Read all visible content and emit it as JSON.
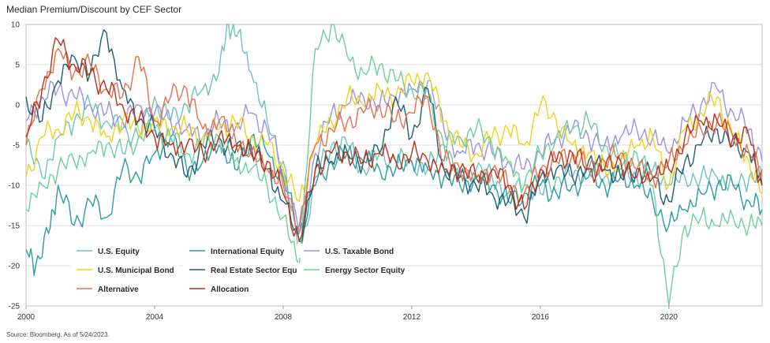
{
  "title": "Median Premium/Discount by CEF Sector",
  "source": "Source: Bloomberg. As of 5/24/2023.",
  "chart_data": {
    "type": "line",
    "xlim": [
      2000,
      2022.9
    ],
    "ylim": [
      -25,
      10
    ],
    "xticks": [
      2000,
      2004,
      2008,
      2012,
      2016,
      2020
    ],
    "xtick_labels": [
      "2000",
      "2004",
      "2008",
      "2012",
      "2016",
      "2020"
    ],
    "yticks": [
      10,
      5,
      0,
      -5,
      -10,
      -15,
      -20,
      -25
    ],
    "ytick_labels": [
      "10",
      "5",
      "0",
      "-5",
      "-10",
      "-15",
      "-20",
      "-25"
    ],
    "grid": "horizontal",
    "legend_position": "bottom-left",
    "series": [
      {
        "name": "U.S. Equity",
        "color": "#6ec3bd",
        "x": [
          2000,
          2000.5,
          2001,
          2001.5,
          2002,
          2002.5,
          2003,
          2003.5,
          2004,
          2004.5,
          2005,
          2005.5,
          2006,
          2006.3,
          2006.6,
          2007,
          2007.5,
          2008,
          2008.5,
          2009,
          2009.5,
          2010,
          2010.5,
          2011,
          2011.5,
          2012,
          2012.5,
          2013,
          2013.5,
          2014,
          2014.5,
          2015,
          2015.5,
          2016,
          2016.5,
          2017,
          2017.5,
          2018,
          2018.5,
          2019,
          2019.5,
          2020,
          2020.5,
          2021,
          2021.5,
          2022,
          2022.5,
          2022.9
        ],
        "y": [
          -5,
          -9,
          -4,
          -2,
          0,
          -2,
          -3,
          -4,
          1,
          -2,
          0,
          2,
          4,
          10,
          9,
          4,
          -2,
          -7,
          -19,
          -9,
          -5,
          -5,
          -8,
          -6,
          -7,
          -7,
          -8,
          -5,
          -9,
          -8,
          -9,
          -11,
          -10,
          -11,
          -9,
          -9,
          -8,
          -9,
          -8,
          -9,
          -8,
          -10,
          -9,
          -9,
          -9,
          -10,
          -9,
          -9
        ]
      },
      {
        "name": "International Equity",
        "color": "#2a9da0",
        "x": [
          2000,
          2000.3,
          2000.7,
          2001,
          2001.5,
          2002,
          2002.5,
          2003,
          2003.5,
          2004,
          2004.5,
          2005,
          2005.5,
          2006,
          2006.5,
          2007,
          2007.5,
          2008,
          2008.5,
          2009,
          2009.5,
          2010,
          2010.5,
          2011,
          2011.5,
          2012,
          2012.5,
          2013,
          2013.5,
          2014,
          2014.5,
          2015,
          2015.5,
          2016,
          2016.5,
          2017,
          2017.5,
          2018,
          2018.5,
          2019,
          2019.5,
          2020,
          2020.5,
          2021,
          2021.5,
          2022,
          2022.5,
          2022.9
        ],
        "y": [
          -18,
          -20,
          -16,
          -10,
          -15,
          -12,
          -14,
          -8,
          -9,
          -6,
          -4,
          -8,
          -7,
          -5,
          -8,
          -4,
          -6,
          -9,
          -16,
          -10,
          -7,
          -6,
          -7,
          -8,
          -8,
          -7,
          -8,
          -9,
          -10,
          -9,
          -10,
          -12,
          -11,
          -10,
          -11,
          -10,
          -9,
          -10,
          -9,
          -10,
          -12,
          -15,
          -13,
          -11,
          -10,
          -10,
          -12,
          -13
        ]
      },
      {
        "name": "U.S. Taxable Bond",
        "color": "#9a93e0",
        "x": [
          2000,
          2000.5,
          2001,
          2001.5,
          2002,
          2002.5,
          2003,
          2003.5,
          2004,
          2004.5,
          2005,
          2005.5,
          2006,
          2006.5,
          2007,
          2007.5,
          2008,
          2008.5,
          2009,
          2009.5,
          2010,
          2010.5,
          2011,
          2011.5,
          2012,
          2012.5,
          2013,
          2013.5,
          2014,
          2014.5,
          2015,
          2015.5,
          2016,
          2016.5,
          2017,
          2017.5,
          2018,
          2018.5,
          2019,
          2019.5,
          2020,
          2020.5,
          2021,
          2021.5,
          2022,
          2022.5,
          2022.9
        ],
        "y": [
          -2,
          1,
          2,
          1,
          0,
          -1,
          -2,
          0,
          -1,
          -2,
          -3,
          -4,
          -2,
          -3,
          -1,
          -3,
          -8,
          -16,
          -6,
          -1,
          0,
          1,
          0,
          1,
          2,
          3,
          -3,
          -6,
          -5,
          -6,
          -7,
          -8,
          -6,
          -4,
          -3,
          -4,
          -5,
          -4,
          -3,
          -4,
          -6,
          -2,
          0,
          2,
          -1,
          -3,
          -7
        ]
      },
      {
        "name": "U.S. Municipal Bond",
        "color": "#f2d21c",
        "x": [
          2000,
          2000.5,
          2001,
          2001.5,
          2002,
          2002.5,
          2003,
          2003.5,
          2004,
          2004.5,
          2005,
          2005.5,
          2006,
          2006.5,
          2007,
          2007.5,
          2008,
          2008.5,
          2009,
          2009.5,
          2010,
          2010.5,
          2011,
          2011.5,
          2012,
          2012.5,
          2013,
          2013.5,
          2014,
          2014.5,
          2015,
          2015.5,
          2016,
          2016.5,
          2017,
          2017.5,
          2018,
          2018.5,
          2019,
          2019.5,
          2020,
          2020.5,
          2021,
          2021.5,
          2022,
          2022.5,
          2022.9
        ],
        "y": [
          -9,
          -4,
          -3,
          -1,
          -2,
          -4,
          -2,
          -3,
          -2,
          -3,
          -3,
          -4,
          -3,
          -2,
          -4,
          -5,
          -8,
          -12,
          -5,
          -2,
          1,
          0,
          2,
          1,
          3,
          4,
          -2,
          -5,
          -6,
          -4,
          -3,
          -5,
          0,
          -2,
          -5,
          -6,
          -8,
          -7,
          -5,
          -4,
          -10,
          -3,
          -1,
          1,
          -4,
          -7,
          -11
        ]
      },
      {
        "name": "Real Estate Sector Equity",
        "color": "#1d5f74",
        "x": [
          2000,
          2000.5,
          2001,
          2001.5,
          2002,
          2002.5,
          2003,
          2003.5,
          2004,
          2004.5,
          2005,
          2005.5,
          2006,
          2006.5,
          2007,
          2007.5,
          2008,
          2008.5,
          2009,
          2009.5,
          2010,
          2010.5,
          2011,
          2011.5,
          2012,
          2012.5,
          2013,
          2013.5,
          2014,
          2014.5,
          2015,
          2015.5,
          2016,
          2016.5,
          2017,
          2017.5,
          2018,
          2018.5,
          2019,
          2019.5,
          2020,
          2020.5,
          2021,
          2021.5,
          2022,
          2022.5,
          2022.9
        ],
        "y": [
          1,
          -2,
          3,
          6,
          4,
          9,
          2,
          -2,
          -3,
          -6,
          -9,
          -5,
          -4,
          -6,
          -5,
          -8,
          -12,
          -17,
          -8,
          -7,
          -6,
          -7,
          -6,
          1,
          -4,
          2,
          -8,
          -9,
          -10,
          -11,
          -12,
          -14,
          -9,
          -8,
          -9,
          -7,
          -8,
          -9,
          -8,
          -9,
          -12,
          -7,
          -5,
          -3,
          -5,
          -6,
          -10
        ]
      },
      {
        "name": "Energy Sector Equity",
        "color": "#6fcf9a",
        "x": [
          2000,
          2000.5,
          2001,
          2001.5,
          2002,
          2002.5,
          2003,
          2003.5,
          2004,
          2004.5,
          2005,
          2005.5,
          2006,
          2006.5,
          2007,
          2007.5,
          2008,
          2008.5,
          2009,
          2009.5,
          2010,
          2010.5,
          2011,
          2011.5,
          2012,
          2012.5,
          2013,
          2013.5,
          2014,
          2014.5,
          2015,
          2015.5,
          2016,
          2016.5,
          2017,
          2017.5,
          2018,
          2018.5,
          2019,
          2019.5,
          2020,
          2020.5,
          2021,
          2021.5,
          2022,
          2022.5,
          2022.9
        ],
        "y": [
          -13,
          -10,
          -8,
          -7,
          -6,
          -5,
          -6,
          -4,
          -3,
          -4,
          -6,
          -5,
          -4,
          -7,
          -8,
          -10,
          -14,
          -20,
          7,
          10,
          6,
          4,
          5,
          3,
          2,
          1,
          -5,
          -4,
          -3,
          -5,
          -7,
          -10,
          -6,
          -4,
          -3,
          -2,
          -5,
          -7,
          -6,
          -10,
          -25,
          -15,
          -14,
          -15,
          -14,
          -15,
          -15
        ]
      },
      {
        "name": "Alternative",
        "color": "#e8704a",
        "x": [
          2000,
          2000.5,
          2001,
          2001.5,
          2002,
          2002.5,
          2003,
          2003.5,
          2004,
          2004.5,
          2005,
          2005.5,
          2006,
          2006.5,
          2007,
          2007.5,
          2008,
          2008.5,
          2009,
          2009.5,
          2010,
          2010.5,
          2011,
          2011.5,
          2012,
          2012.5,
          2013,
          2013.5,
          2014,
          2014.5,
          2015,
          2015.5,
          2016,
          2016.5,
          2017,
          2017.5,
          2018,
          2018.5,
          2019,
          2019.5,
          2020,
          2020.5,
          2021,
          2021.5,
          2022,
          2022.5,
          2022.9
        ],
        "y": [
          -5,
          2,
          7,
          4,
          5,
          2,
          1,
          6,
          -2,
          1,
          2,
          -3,
          -2,
          -4,
          -6,
          -8,
          -10,
          -15,
          -5,
          -3,
          -2,
          -1,
          0,
          -2,
          -1,
          1,
          -7,
          -8,
          -9,
          -8,
          -10,
          -11,
          -8,
          -7,
          -6,
          -8,
          -7,
          -6,
          -8,
          -9,
          -7,
          -5,
          -3,
          -2,
          -4,
          -6,
          -8
        ]
      },
      {
        "name": "Allocation",
        "color": "#b83218",
        "x": [
          2000,
          2000.5,
          2001,
          2001.5,
          2002,
          2002.5,
          2003,
          2003.5,
          2004,
          2004.5,
          2005,
          2005.5,
          2006,
          2006.5,
          2007,
          2007.5,
          2008,
          2008.5,
          2009,
          2009.5,
          2010,
          2010.5,
          2011,
          2011.5,
          2012,
          2012.5,
          2013,
          2013.5,
          2014,
          2014.5,
          2015,
          2015.5,
          2016,
          2016.5,
          2017,
          2017.5,
          2018,
          2018.5,
          2019,
          2019.5,
          2020,
          2020.5,
          2021,
          2021.5,
          2022,
          2022.5,
          2022.9
        ],
        "y": [
          -4,
          2,
          8,
          5,
          4,
          2,
          0,
          -2,
          -4,
          -5,
          -5,
          -6,
          -4,
          -5,
          -6,
          -7,
          -11,
          -17,
          -8,
          -6,
          -6,
          -7,
          -6,
          -7,
          -6,
          -7,
          -8,
          -8,
          -9,
          -8,
          -10,
          -13,
          -8,
          -7,
          -6,
          -8,
          -8,
          -7,
          -9,
          -9,
          -8,
          -4,
          -2,
          -2,
          -4,
          -4,
          -10
        ]
      }
    ]
  }
}
